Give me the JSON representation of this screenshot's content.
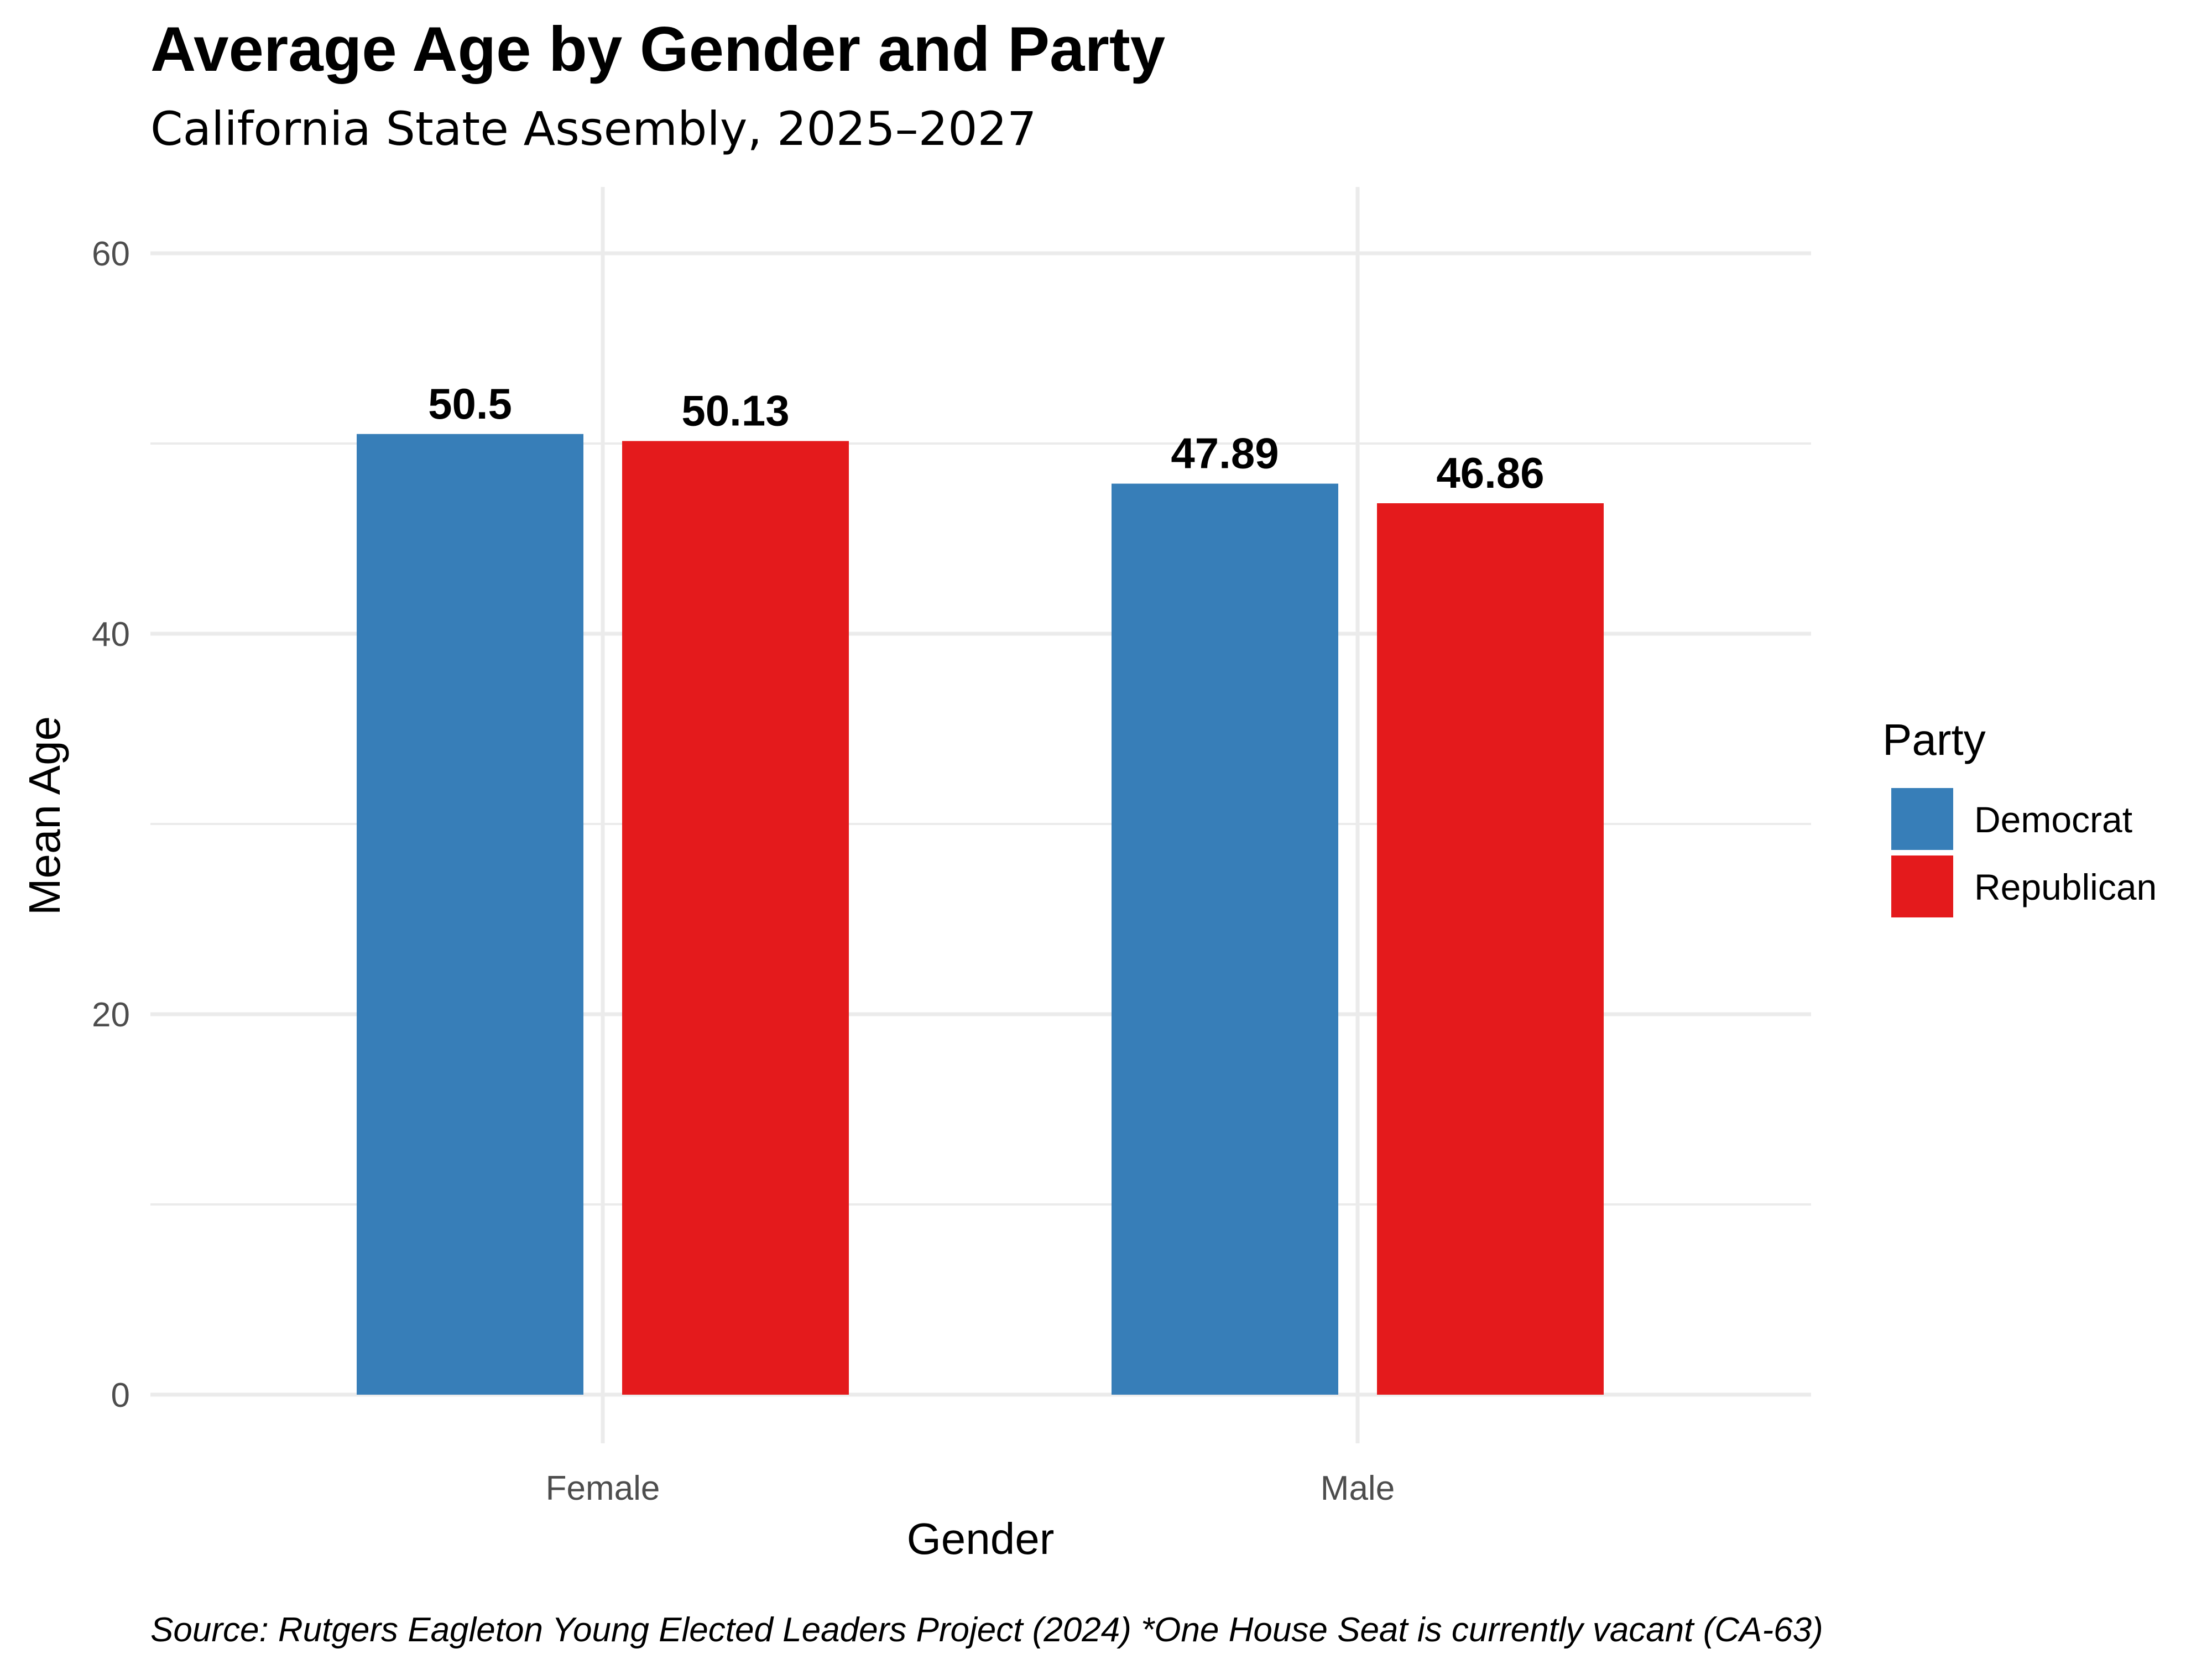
{
  "chart_data": {
    "type": "bar",
    "title": "Average Age by Gender and Party",
    "subtitle": "California State Assembly, 2025–2027",
    "xlabel": "Gender",
    "ylabel": "Mean Age",
    "categories": [
      "Female",
      "Male"
    ],
    "series": [
      {
        "name": "Democrat",
        "values": [
          50.5,
          47.89
        ],
        "labels": [
          "50.5",
          "47.89"
        ],
        "color": "#377eb8"
      },
      {
        "name": "Republican",
        "values": [
          50.13,
          46.86
        ],
        "labels": [
          "50.13",
          "46.86"
        ],
        "color": "#e41a1c"
      }
    ],
    "ylim": [
      -2.5,
      63.5
    ],
    "yticks": [
      0,
      20,
      40,
      60
    ],
    "ytick_labels": [
      "0",
      "20",
      "40",
      "60"
    ],
    "grid": true,
    "legend": {
      "title": "Party",
      "placement": "right"
    },
    "caption": "Source: Rutgers Eagleton Young Elected Leaders Project (2024) *One House Seat is currently vacant (CA-63)"
  }
}
